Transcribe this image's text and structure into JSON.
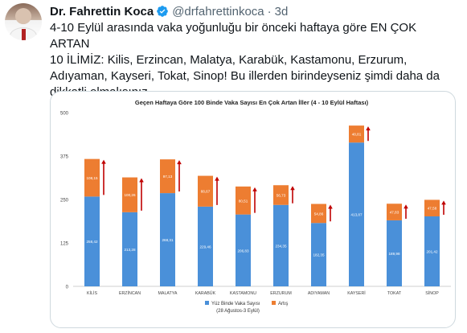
{
  "tweet": {
    "display_name": "Dr. Fahrettin Koca",
    "handle": "@drfahrettinkoca",
    "separator": "·",
    "time": "3d",
    "text": "4-10 Eylül arasında vaka yoğunluğu bir önceki haftaya göre EN ÇOK ARTAN\n10 İLİMİZ: Kilis, Erzincan, Malatya, Karabük, Kastamonu, Erzurum,\nAdıyaman, Kayseri, Tokat, Sinop! Bu illerden birindeyseniz şimdi daha da\ndikkatli olmalısınız."
  },
  "icons": {
    "verified": "verified-badge-icon",
    "arrow": "up-arrow-icon"
  },
  "colors": {
    "base_series": "#4a90d9",
    "increase_series": "#ed7d31",
    "arrow": "#c00000",
    "verified": "#1d9bf0"
  },
  "chart_data": {
    "type": "bar",
    "stacked": true,
    "title": "Geçen Haftaya Göre 100 Binde Vaka Sayısı En Çok Artan İller (4 - 10 Eylül Haftası)",
    "categories": [
      "KİLİS",
      "ERZİNCAN",
      "MALATYA",
      "KARABÜK",
      "KASTAMONU",
      "ERZURUM",
      "ADIYAMAN",
      "KAYSERİ",
      "TOKAT",
      "SİNOP"
    ],
    "series": [
      {
        "name": "Yüz Binde Vaka Sayısı",
        "values": [
          258.42,
          213.28,
          268.31,
          229.46,
          206.83,
          234.35,
          182.35,
          413.87,
          189.98,
          201.42
        ],
        "labels": [
          "258,42",
          "213,28",
          "268,31",
          "229,46",
          "206,83",
          "234,35",
          "182,35",
          "413,87",
          "189,98",
          "201,42"
        ]
      },
      {
        "name": "Artış",
        "values": [
          108.15,
          100.26,
          97.13,
          88.67,
          80.51,
          56.73,
          54.86,
          48.81,
          47.83,
          47.58
        ],
        "labels": [
          "108,15",
          "100,26",
          "97,13",
          "88,67",
          "80,51",
          "56,73",
          "54,86",
          "48,81",
          "47,83",
          "47,58"
        ]
      }
    ],
    "legend_note": "(28 Ağustos-3 Eylül)",
    "yticks": [
      0,
      125,
      250,
      375,
      500
    ],
    "ylim": [
      0,
      500
    ],
    "grid": false,
    "legend_position": "bottom"
  }
}
